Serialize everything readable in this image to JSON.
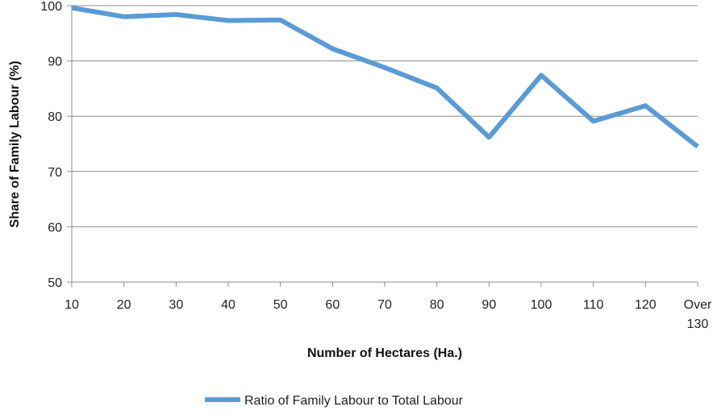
{
  "chart_data": {
    "type": "line",
    "categories": [
      "10",
      "20",
      "30",
      "40",
      "50",
      "60",
      "70",
      "80",
      "90",
      "100",
      "110",
      "120",
      "Over 130"
    ],
    "series": [
      {
        "name": "Ratio of Family Labour to Total Labour",
        "values": [
          99.6,
          98.0,
          98.4,
          97.3,
          97.4,
          92.2,
          88.8,
          85.1,
          76.2,
          87.4,
          79.1,
          81.9,
          74.5
        ],
        "color": "#5b9bd5"
      }
    ],
    "xlabel": "Number of Hectares (Ha.)",
    "ylabel": "Share of Family Labour (%)",
    "ylim": [
      50,
      100
    ],
    "yticks": [
      50,
      60,
      70,
      80,
      90,
      100
    ],
    "grid": true,
    "legend": "bottom"
  }
}
